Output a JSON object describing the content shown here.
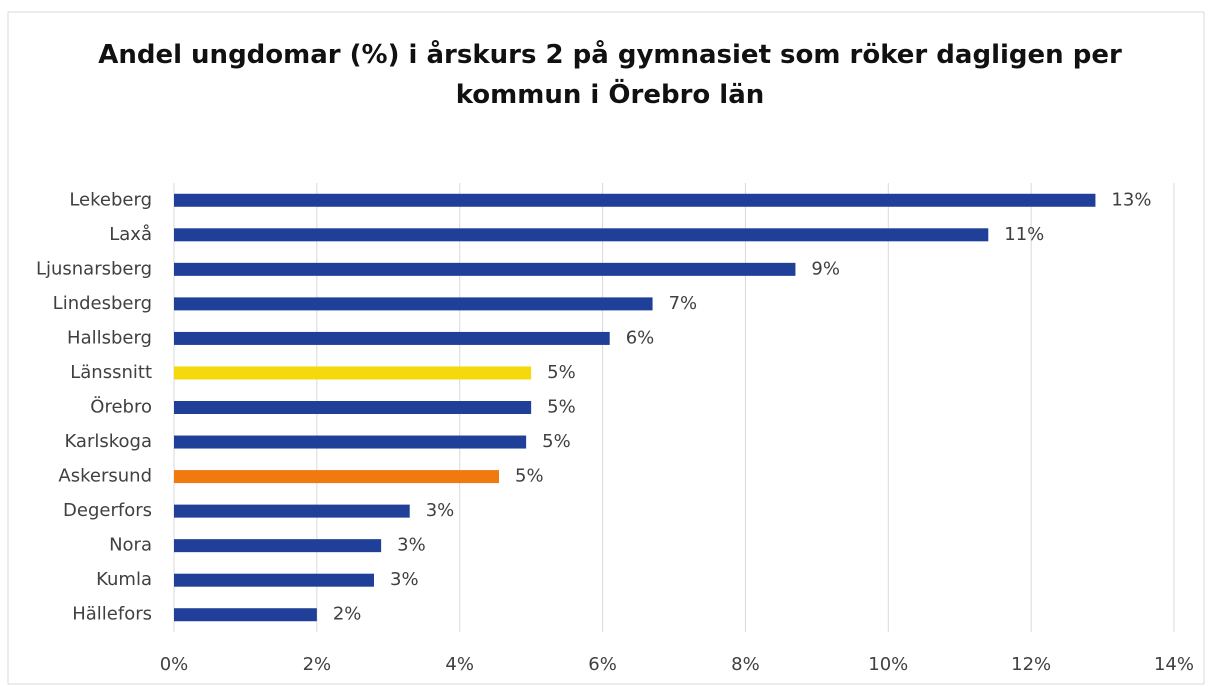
{
  "chart_data": {
    "type": "barh",
    "title": "Andel ungdomar (%) i årskurs 2 på gymnasiet som röker dagligen per kommun i Örebro län",
    "categories": [
      "Lekeberg",
      "Laxå",
      "Ljusnarsberg",
      "Lindesberg",
      "Hallsberg",
      "Länssnitt",
      "Örebro",
      "Karlskoga",
      "Askersund",
      "Degerfors",
      "Nora",
      "Kumla",
      "Hällefors"
    ],
    "values": [
      12.9,
      11.4,
      8.7,
      6.7,
      6.1,
      5.0,
      5.0,
      4.93,
      4.55,
      3.3,
      2.9,
      2.8,
      2.0
    ],
    "value_labels": [
      "13%",
      "11%",
      "9%",
      "7%",
      "6%",
      "5%",
      "5%",
      "5%",
      "5%",
      "3%",
      "3%",
      "3%",
      "2%"
    ],
    "colors": [
      "#1f3f99",
      "#1f3f99",
      "#1f3f99",
      "#1f3f99",
      "#1f3f99",
      "#f5d90a",
      "#1f3f99",
      "#1f3f99",
      "#f07a10",
      "#1f3f99",
      "#1f3f99",
      "#1f3f99",
      "#1f3f99"
    ],
    "xlim": [
      0,
      14
    ],
    "xticks": [
      {
        "value": 0,
        "label": "0%"
      },
      {
        "value": 2,
        "label": "2%"
      },
      {
        "value": 4,
        "label": "4%"
      },
      {
        "value": 6,
        "label": "6%"
      },
      {
        "value": 8,
        "label": "8%"
      },
      {
        "value": 10,
        "label": "10%"
      },
      {
        "value": 12,
        "label": "12%"
      },
      {
        "value": 14,
        "label": "14%"
      }
    ],
    "grid": true
  }
}
